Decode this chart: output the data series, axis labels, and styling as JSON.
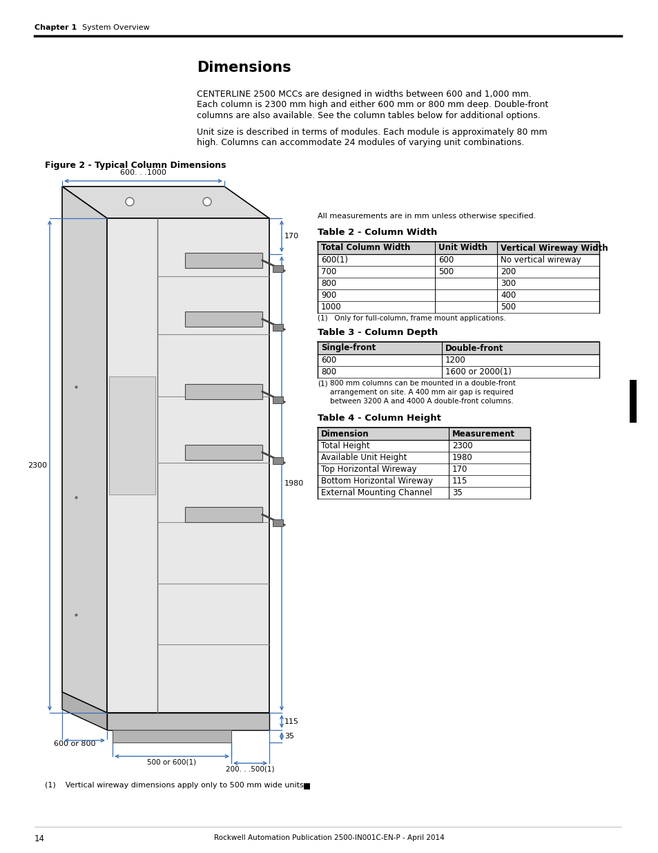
{
  "page_title_bold": "Chapter 1",
  "page_title_normal": "    System Overview",
  "section_title": "Dimensions",
  "body_text_1": "CENTERLINE 2500 MCCs are designed in widths between 600 and 1,000 mm.\nEach column is 2300 mm high and either 600 mm or 800 mm deep. Double-front\ncolumns are also available. See the column tables below for additional options.",
  "body_text_2": "Unit size is described in terms of modules. Each module is approximately 80 mm\nhigh. Columns can accommodate 24 modules of varying unit combinations.",
  "figure_title": "Figure 2 - Typical Column Dimensions",
  "measurement_note": "All measurements are in mm unless otherwise specified.",
  "table2_title": "Table 2 - Column Width",
  "table2_headers": [
    "Total Column Width",
    "Unit Width",
    "Vertical Wireway Width"
  ],
  "table2_rows": [
    [
      "600(1)",
      "600",
      "No vertical wireway"
    ],
    [
      "700",
      "500",
      "200"
    ],
    [
      "800",
      "",
      "300"
    ],
    [
      "900",
      "",
      "400"
    ],
    [
      "1000",
      "",
      "500"
    ]
  ],
  "table2_row0_superscript": true,
  "table2_note": "(1)   Only for full-column, frame mount applications.",
  "table3_title": "Table 3 - Column Depth",
  "table3_headers": [
    "Single-front",
    "Double-front"
  ],
  "table3_rows": [
    [
      "600",
      "1200"
    ],
    [
      "800",
      "1600 or 2000(1)"
    ]
  ],
  "table3_note_num": "(1)",
  "table3_note_text": "800 mm columns can be mounted in a double-front\narrangement on site. A 400 mm air gap is required\nbetween 3200 A and 4000 A double-front columns.",
  "table4_title": "Table 4 - Column Height",
  "table4_headers": [
    "Dimension",
    "Measurement"
  ],
  "table4_rows": [
    [
      "Total Height",
      "2300"
    ],
    [
      "Available Unit Height",
      "1980"
    ],
    [
      "Top Horizontal Wireway",
      "170"
    ],
    [
      "Bottom Horizontal Wireway",
      "115"
    ],
    [
      "External Mounting Channel",
      "35"
    ]
  ],
  "footer_text": "14",
  "footer_center": "Rockwell Automation Publication 2500-IN001C-EN-P - April 2014",
  "footnote_vertical": "(1)    Vertical wireway dimensions apply only to 500 mm wide units.",
  "blue": "#3a6eb5",
  "cab_face": "#e8e8e8",
  "cab_side": "#d0d0d0",
  "cab_top": "#dcdcdc",
  "cab_dark": "#888888",
  "shelf_color": "#aaaaaa",
  "unit_color": "#b0b0b0"
}
